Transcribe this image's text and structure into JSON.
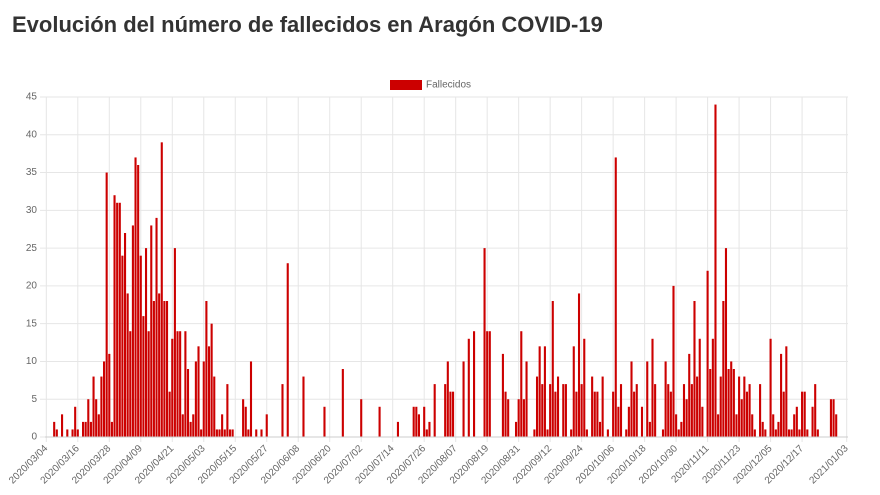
{
  "chart_data": {
    "type": "bar",
    "title": "Evolución del número de fallecidos en Aragón COVID-19",
    "x": [
      "2020/03/04",
      null,
      null,
      null,
      null,
      null,
      null,
      null,
      null,
      null,
      null,
      null,
      "2020/03/16",
      null,
      null,
      null,
      null,
      null,
      null,
      null,
      null,
      null,
      null,
      null,
      "2020/03/28",
      null,
      null,
      null,
      null,
      null,
      null,
      null,
      null,
      null,
      null,
      null,
      "2020/04/09",
      null,
      null,
      null,
      null,
      null,
      null,
      null,
      null,
      null,
      null,
      null,
      "2020/04/21",
      null,
      null,
      null,
      null,
      null,
      null,
      null,
      null,
      null,
      null,
      null,
      "2020/05/03",
      null,
      null,
      null,
      null,
      null,
      null,
      null,
      null,
      null,
      null,
      null,
      "2020/05/15",
      null,
      null,
      null,
      null,
      null,
      null,
      null,
      null,
      null,
      null,
      null,
      "2020/05/27",
      null,
      null,
      null,
      null,
      null,
      null,
      null,
      null,
      null,
      null,
      null,
      "2020/06/08",
      null,
      null,
      null,
      null,
      null,
      null,
      null,
      null,
      null,
      null,
      null,
      "2020/06/20",
      null,
      null,
      null,
      null,
      null,
      null,
      null,
      null,
      null,
      null,
      null,
      "2020/07/02",
      null,
      null,
      null,
      null,
      null,
      null,
      null,
      null,
      null,
      null,
      null,
      "2020/07/14",
      null,
      null,
      null,
      null,
      null,
      null,
      null,
      null,
      null,
      null,
      null,
      "2020/07/26",
      null,
      null,
      null,
      null,
      null,
      null,
      null,
      null,
      null,
      null,
      null,
      "2020/08/07",
      null,
      null,
      null,
      null,
      null,
      null,
      null,
      null,
      null,
      null,
      null,
      "2020/08/19",
      null,
      null,
      null,
      null,
      null,
      null,
      null,
      null,
      null,
      null,
      null,
      "2020/08/31",
      null,
      null,
      null,
      null,
      null,
      null,
      null,
      null,
      null,
      null,
      null,
      "2020/09/12",
      null,
      null,
      null,
      null,
      null,
      null,
      null,
      null,
      null,
      null,
      null,
      "2020/09/24",
      null,
      null,
      null,
      null,
      null,
      null,
      null,
      null,
      null,
      null,
      null,
      "2020/10/06",
      null,
      null,
      null,
      null,
      null,
      null,
      null,
      null,
      null,
      null,
      null,
      "2020/10/18",
      null,
      null,
      null,
      null,
      null,
      null,
      null,
      null,
      null,
      null,
      null,
      "2020/10/30",
      null,
      null,
      null,
      null,
      null,
      null,
      null,
      null,
      null,
      null,
      null,
      "2020/11/11",
      null,
      null,
      null,
      null,
      null,
      null,
      null,
      null,
      null,
      null,
      null,
      "2020/11/23",
      null,
      null,
      null,
      null,
      null,
      null,
      null,
      null,
      null,
      null,
      null,
      "2020/12/05",
      null,
      null,
      null,
      null,
      null,
      null,
      null,
      null,
      null,
      null,
      null,
      "2020/12/17",
      null,
      null,
      null,
      null,
      null,
      null,
      null,
      null,
      null,
      null,
      null,
      null,
      null,
      null,
      null,
      null,
      "2021/01/03"
    ],
    "series": [
      {
        "name": "Fallecidos",
        "color": "#cc0000",
        "values": [
          0,
          0,
          0,
          2,
          1,
          0,
          3,
          0,
          1,
          0,
          1,
          4,
          1,
          0,
          2,
          2,
          5,
          2,
          8,
          5,
          3,
          8,
          10,
          35,
          11,
          2,
          32,
          31,
          31,
          24,
          27,
          19,
          14,
          28,
          37,
          36,
          24,
          16,
          25,
          14,
          28,
          18,
          29,
          19,
          39,
          18,
          18,
          6,
          13,
          25,
          14,
          14,
          3,
          14,
          9,
          2,
          3,
          10,
          12,
          1,
          10,
          18,
          12,
          15,
          8,
          1,
          1,
          3,
          1,
          7,
          1,
          1,
          0,
          0,
          0,
          5,
          4,
          1,
          10,
          0,
          1,
          0,
          1,
          0,
          3,
          0,
          0,
          0,
          0,
          0,
          7,
          0,
          23,
          0,
          0,
          0,
          0,
          0,
          8,
          0,
          0,
          0,
          0,
          0,
          0,
          0,
          4,
          0,
          0,
          0,
          0,
          0,
          0,
          9,
          0,
          0,
          0,
          0,
          0,
          0,
          5,
          0,
          0,
          0,
          0,
          0,
          0,
          4,
          0,
          0,
          0,
          0,
          0,
          0,
          2,
          0,
          0,
          0,
          0,
          0,
          4,
          4,
          3,
          0,
          4,
          1,
          2,
          0,
          7,
          0,
          0,
          0,
          7,
          10,
          6,
          6,
          0,
          0,
          0,
          10,
          0,
          13,
          0,
          14,
          0,
          0,
          0,
          25,
          14,
          14,
          0,
          0,
          0,
          0,
          11,
          6,
          5,
          0,
          0,
          2,
          5,
          14,
          5,
          10,
          0,
          0,
          1,
          8,
          12,
          7,
          12,
          1,
          7,
          18,
          6,
          8,
          0,
          7,
          7,
          0,
          1,
          12,
          6,
          19,
          7,
          13,
          1,
          0,
          8,
          6,
          6,
          2,
          8,
          0,
          1,
          0,
          6,
          37,
          4,
          7,
          0,
          1,
          4,
          10,
          6,
          7,
          0,
          4,
          0,
          10,
          2,
          13,
          7,
          0,
          0,
          1,
          10,
          7,
          6,
          20,
          3,
          1,
          2,
          7,
          5,
          11,
          7,
          18,
          8,
          13,
          4,
          0,
          22,
          9,
          13,
          44,
          3,
          8,
          18,
          25,
          9,
          10,
          9,
          3,
          8,
          5,
          8,
          6,
          7,
          3,
          1,
          0,
          7,
          2,
          1,
          0,
          13,
          3,
          1,
          2,
          11,
          6,
          12,
          1,
          1,
          3,
          4,
          1,
          6,
          6,
          1,
          0,
          4,
          7,
          1,
          0,
          0,
          0,
          0,
          5,
          5,
          3,
          0,
          0,
          0,
          0
        ]
      }
    ],
    "ylim": [
      0,
      45
    ],
    "yticks": [
      0,
      5,
      10,
      15,
      20,
      25,
      30,
      35,
      40,
      45
    ],
    "grid": true,
    "legend": "top"
  }
}
